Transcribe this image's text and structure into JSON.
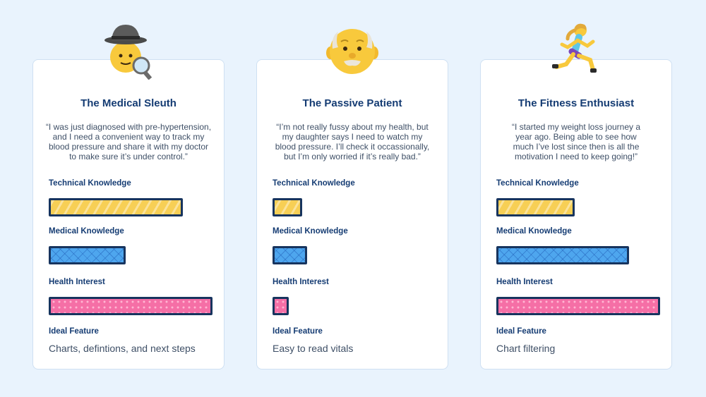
{
  "labels": {
    "technical": "Technical Knowledge",
    "medical": "Medical Knowledge",
    "interest": "Health Interest",
    "feature": "Ideal Feature"
  },
  "colors": {
    "card_title": "#153c73",
    "technical_bar": "#f7cf55",
    "medical_bar": "#4ea6ee",
    "interest_bar": "#f56fa6",
    "bar_border": "#17345e"
  },
  "personas": [
    {
      "icon": "detective-icon",
      "title": "The Medical Sleuth",
      "quote": "“I was just diagnosed with pre-hypertension, and I need a convenient way to track my blood pressure and share it with my doctor to make sure it’s under control.”",
      "quote_lines": [
        "“I was just diagnosed with pre-hypertension,",
        "and I need a convenient way to track my",
        "blood pressure and share it with my doctor",
        "to make sure it’s under control.”"
      ],
      "technical": 0.82,
      "medical": 0.47,
      "interest": 1.0,
      "feature": "Charts, defintions, and next steps"
    },
    {
      "icon": "old-man-icon",
      "title": "The Passive Patient",
      "quote": "“I’m not really fussy about my health, but my daughter says I need to watch my blood pressure. I’ll check it occassionally, but I’m only worried if it’s really bad.”",
      "quote_lines": [
        "“I’m not really fussy about my health, but",
        "my daughter says I need to watch my",
        "blood pressure. I’ll check it occassionally,",
        "but I’m only worried if it’s really bad.”"
      ],
      "technical": 0.18,
      "medical": 0.21,
      "interest": 0.1,
      "feature": "Easy to read vitals"
    },
    {
      "icon": "running-woman-icon",
      "title": "The Fitness Enthusiast",
      "quote": "“I started my weight loss journey a year ago. Being able to see how much I’ve lost since then is all the motivation I need to keep going!”",
      "quote_lines": [
        "“I started my weight loss journey a",
        "year ago. Being able to see how",
        "much I’ve lost since then is all the",
        "motivation I need to keep going!”"
      ],
      "technical": 0.48,
      "medical": 0.81,
      "interest": 1.0,
      "feature": "Chart filtering"
    }
  ]
}
